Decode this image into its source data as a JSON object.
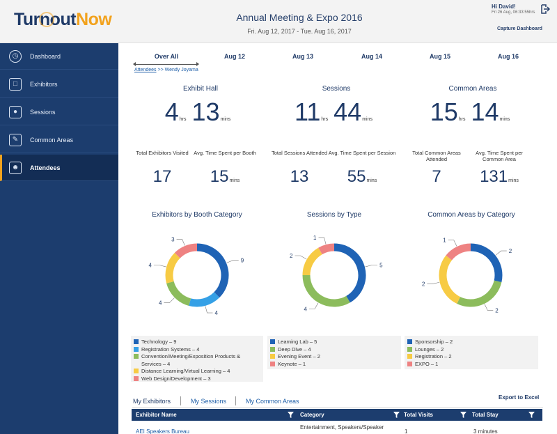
{
  "header": {
    "logo_part1": "Turnout",
    "logo_part2": "Now",
    "event_title": "Annual Meeting & Expo 2016",
    "event_dates": "Fri. Aug 12, 2017 - Tue. Aug 16, 2017",
    "greeting": "Hi David!",
    "greeting_time": "Fri 26 Aug, 06:33:55hrs",
    "capture_label": "Capture Dashboard"
  },
  "sidebar": {
    "items": [
      {
        "label": "Dashboard",
        "icon": "dashboard-gauge-icon"
      },
      {
        "label": "Exhibitors",
        "icon": "exhibitors-booth-icon"
      },
      {
        "label": "Sessions",
        "icon": "sessions-presenter-icon"
      },
      {
        "label": "Common Areas",
        "icon": "common-areas-icon"
      },
      {
        "label": "Attendees",
        "icon": "attendees-user-icon",
        "active": true
      }
    ]
  },
  "day_tabs": [
    "Over All",
    "Aug 12",
    "Aug 13",
    "Aug 14",
    "Aug 15",
    "Aug 16"
  ],
  "breadcrumb": {
    "root": "Attendees",
    "sep": ">>",
    "current": "Wendy Joyama"
  },
  "sections": [
    {
      "title": "Exhibit Hall",
      "hrs": "4",
      "mins": "13",
      "stat1_label": "Total Exhibitors Visited",
      "stat1_value": "17",
      "stat2_label": "Avg. Time Spent per Booth",
      "stat2_value": "15"
    },
    {
      "title": "Sessions",
      "hrs": "11",
      "mins": "44",
      "stat1_label": "Total Sessions Attended",
      "stat1_value": "13",
      "stat2_label": "Avg. Time Spent per Session",
      "stat2_value": "55"
    },
    {
      "title": "Common Areas",
      "hrs": "15",
      "mins": "14",
      "stat1_label": "Total Common Areas Attended",
      "stat1_value": "7",
      "stat2_label": "Avg. Time Spent per Common Area",
      "stat2_value": "131"
    }
  ],
  "units": {
    "hrs": "hrs",
    "mins": "mins"
  },
  "colors": {
    "blue": "#1f63b5",
    "light_blue": "#35a0e6",
    "green": "#8cbc5c",
    "yellow": "#f7cb44",
    "pink": "#ee8282",
    "navy": "#1c3d6e",
    "accent": "#f2a21d"
  },
  "chart_data": [
    {
      "type": "pie",
      "title": "Exhibitors by Booth Category",
      "categories": [
        "Technology",
        "Registration Systems",
        "Convention/Meeting/Exposition Products & Services",
        "Distance Learning/Virtual Learning",
        "Web Design/Development"
      ],
      "values": [
        9,
        4,
        4,
        4,
        3
      ],
      "colors": [
        "#1f63b5",
        "#35a0e6",
        "#8cbc5c",
        "#f7cb44",
        "#ee8282"
      ],
      "legend": [
        "Technology – 9",
        "Registration Systems – 4",
        "Convention/Meeting/Exposition Products & Services – 4",
        "Distance Learning/Virtual Learning – 4",
        "Web Design/Development – 3"
      ]
    },
    {
      "type": "pie",
      "title": "Sessions by Type",
      "categories": [
        "Learning Lab",
        "Deep Dive",
        "Evening Event",
        "Keynote"
      ],
      "values": [
        5,
        4,
        2,
        1
      ],
      "colors": [
        "#1f63b5",
        "#8cbc5c",
        "#f7cb44",
        "#ee8282"
      ],
      "legend": [
        "Learning Lab – 5",
        "Deep Dive – 4",
        "Evening Event – 2",
        "Keynote – 1"
      ]
    },
    {
      "type": "pie",
      "title": "Common Areas by Category",
      "categories": [
        "Sponsorship",
        "Lounges",
        "Registration",
        "EXPO"
      ],
      "values": [
        2,
        2,
        2,
        1
      ],
      "colors": [
        "#1f63b5",
        "#8cbc5c",
        "#f7cb44",
        "#ee8282"
      ],
      "legend": [
        "Sponsorship – 2",
        "Lounges – 2",
        "Registration – 2",
        "EXPO – 1"
      ]
    }
  ],
  "bottom_tabs": [
    "My Exhibitors",
    "My Sessions",
    "My Common Areas"
  ],
  "export_label": "Export to Excel",
  "table": {
    "columns": [
      "Exhibitor Name",
      "Category",
      "Total Visits",
      "Total Stay"
    ],
    "rows": [
      {
        "name": "AEI Speakers Bureau",
        "category": "Entertainment, Speakers/Speaker",
        "visits": "1",
        "stay": "3 minutes"
      }
    ]
  }
}
